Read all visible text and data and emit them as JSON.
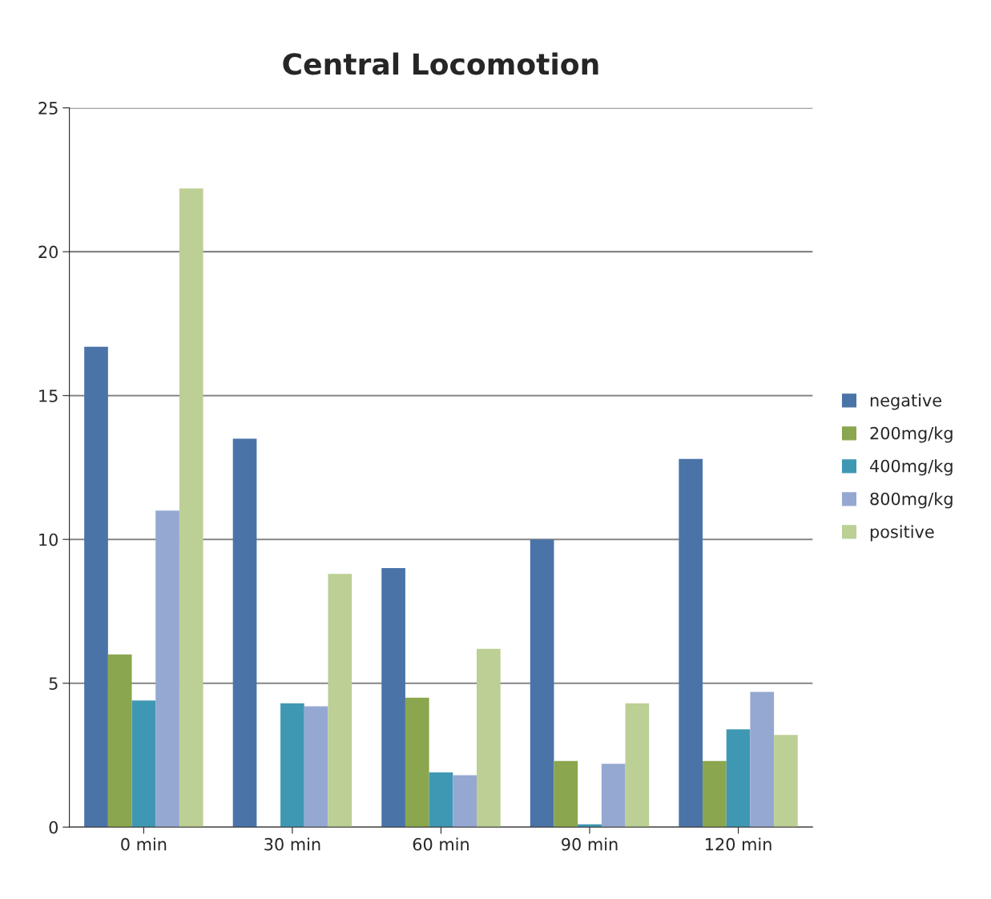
{
  "chart_data": {
    "type": "bar",
    "title": "Central Locomotion",
    "categories": [
      "0 min",
      "30 min",
      "60 min",
      "90 min",
      "120 min"
    ],
    "series": [
      {
        "name": "negative",
        "color": "#4a74a8",
        "values": [
          16.7,
          13.5,
          9.0,
          10.0,
          12.8
        ]
      },
      {
        "name": "200mg/kg",
        "color": "#8aa64e",
        "values": [
          6.0,
          0,
          4.5,
          2.3,
          2.3
        ]
      },
      {
        "name": "400mg/kg",
        "color": "#3f98b3",
        "values": [
          4.4,
          4.3,
          1.9,
          0.1,
          3.4
        ]
      },
      {
        "name": "800mg/kg",
        "color": "#95a8d2",
        "values": [
          11.0,
          4.2,
          1.8,
          2.2,
          4.7
        ]
      },
      {
        "name": "positive",
        "color": "#bccf95",
        "values": [
          22.2,
          8.8,
          6.2,
          4.3,
          3.2
        ]
      }
    ],
    "ylim": [
      0,
      25
    ],
    "yticks": [
      0,
      5,
      10,
      15,
      20,
      25
    ],
    "grid": "y",
    "legend": "right"
  }
}
